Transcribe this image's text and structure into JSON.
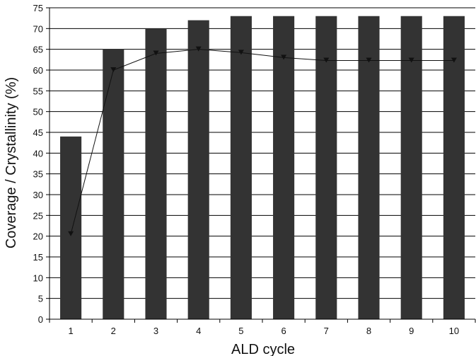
{
  "chart_data": {
    "type": "bar",
    "title": "",
    "xlabel": "ALD cycle",
    "ylabel": "Coverage / Crystallinity (%)",
    "categories": [
      "1",
      "2",
      "3",
      "4",
      "5",
      "6",
      "7",
      "8",
      "9",
      "10"
    ],
    "ylim": [
      0,
      75
    ],
    "yticks": [
      0,
      5,
      10,
      15,
      20,
      25,
      30,
      35,
      40,
      45,
      50,
      55,
      60,
      65,
      70,
      75
    ],
    "grid": true,
    "legend": "none",
    "series": [
      {
        "type": "bar",
        "values": [
          44,
          65,
          70,
          72,
          73,
          73,
          73,
          73,
          73,
          73
        ],
        "color": "#333333"
      },
      {
        "type": "line",
        "marker": "triangle-down",
        "values": [
          20.5,
          60,
          64,
          65,
          64.2,
          63,
          62.3,
          62.3,
          62.3,
          62.3
        ],
        "color": "#111111"
      }
    ]
  }
}
